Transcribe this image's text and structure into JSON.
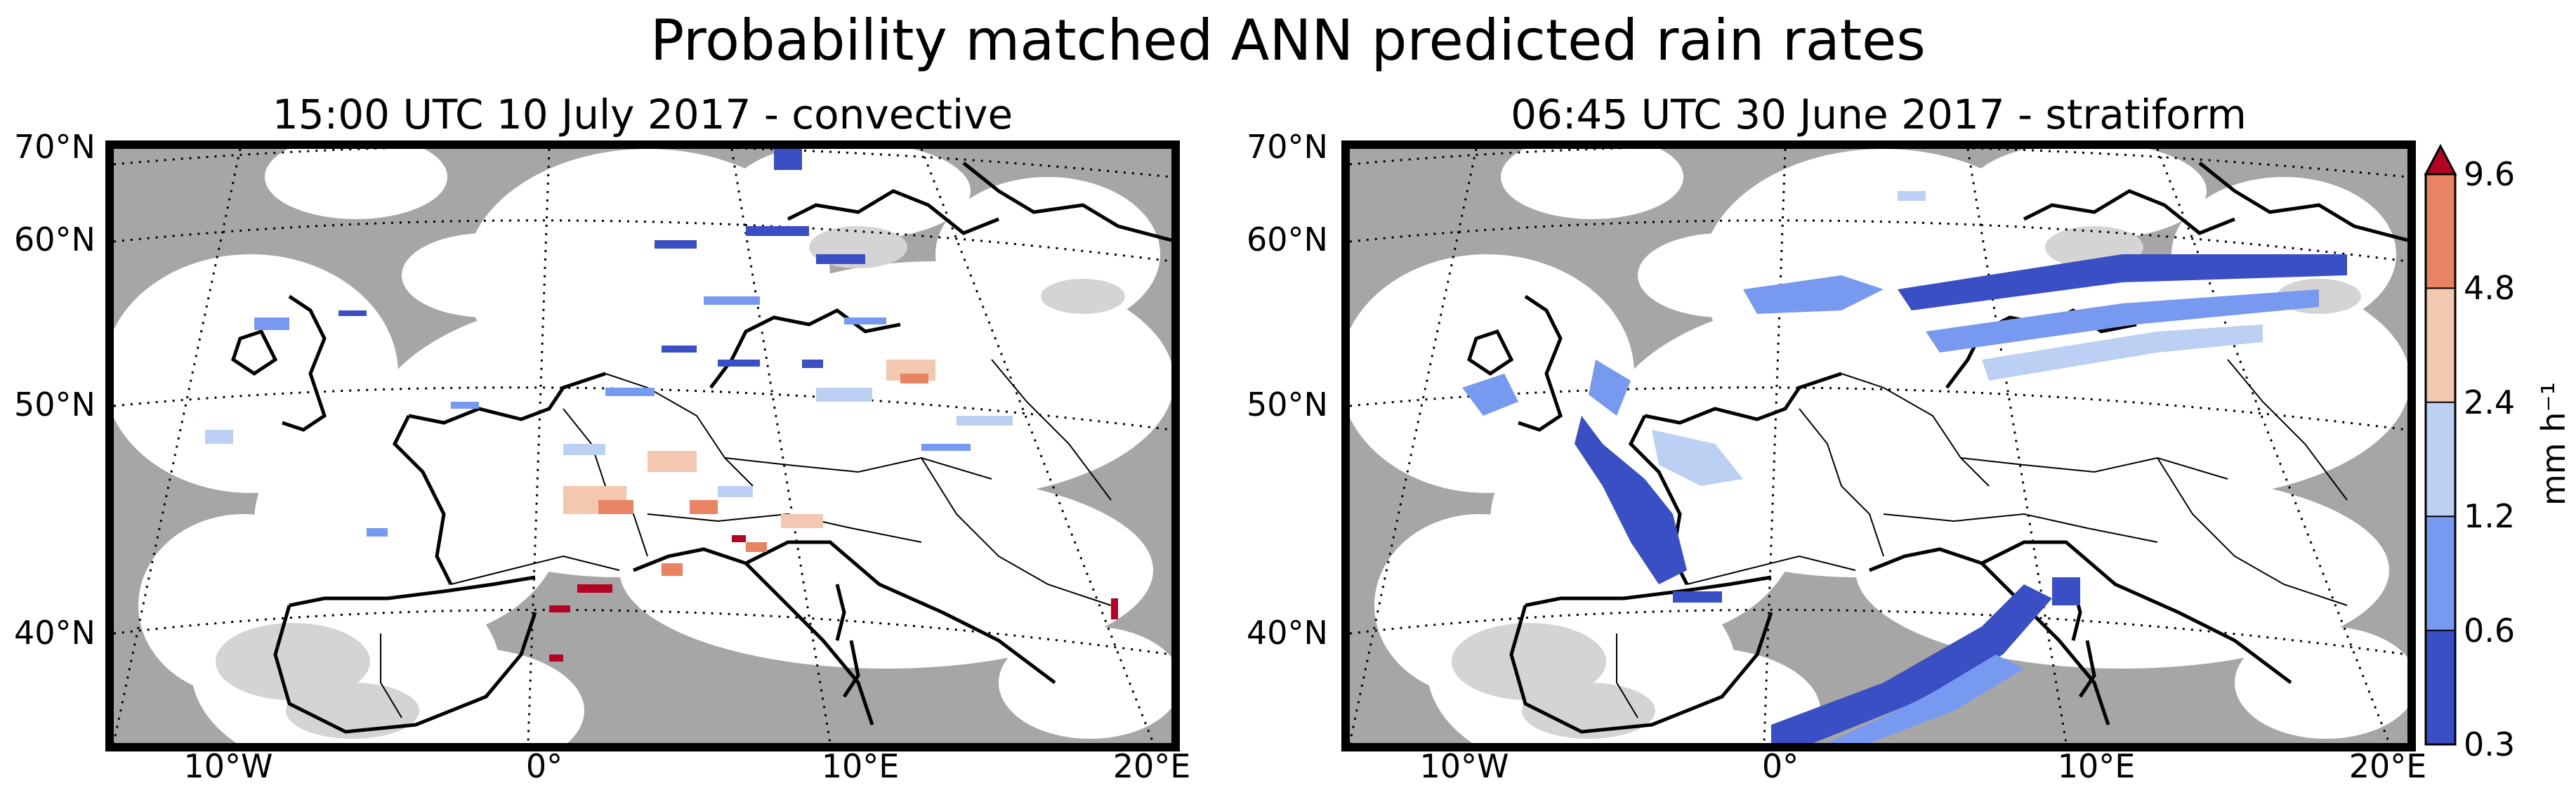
{
  "title": "Probability matched ANN predicted rain rates",
  "panels": [
    {
      "title": "15:00 UTC 10 July 2017 - convective",
      "lat_labels": [
        "70°N",
        "60°N",
        "50°N",
        "40°N"
      ],
      "lon_labels": [
        "10°W",
        "0°",
        "10°E",
        "20°E"
      ]
    },
    {
      "title": "06:45 UTC 30 June 2017 - stratiform",
      "lat_labels": [
        "70°N",
        "60°N",
        "50°N",
        "40°N"
      ],
      "lon_labels": [
        "10°W",
        "0°",
        "10°E",
        "20°E"
      ]
    }
  ],
  "colorbar": {
    "unit": "mm h⁻¹",
    "ticks": [
      "9.6",
      "4.8",
      "2.4",
      "1.2",
      "0.6",
      "0.3"
    ],
    "bin_colors": [
      "#3a4fc4",
      "#7899f0",
      "#bcd0f4",
      "#f3c8b1",
      "#e88363"
    ],
    "extend_color": "#b40426"
  },
  "colors": {
    "no_coverage": "#a6a6a6",
    "radar_coverage": "#ffffff",
    "clutter": "#d4d4d4"
  }
}
